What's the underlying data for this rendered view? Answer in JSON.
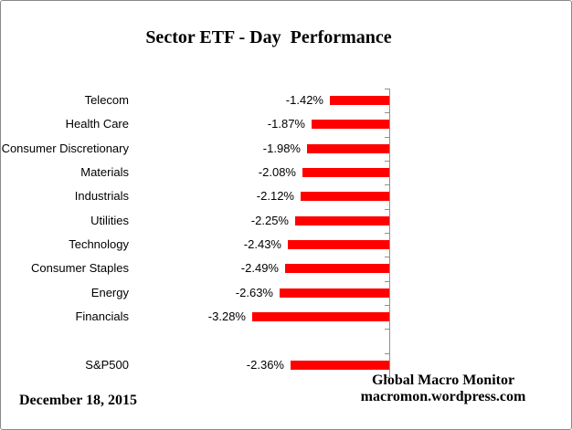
{
  "chart_data": {
    "type": "bar",
    "orientation": "horizontal",
    "title": "Sector ETF - Day  Performance",
    "categories": [
      "Telecom",
      "Health Care",
      "Consumer Discretionary",
      "Materials",
      "Industrials",
      "Utilities",
      "Technology",
      "Consumer Staples",
      "Energy",
      "Financials",
      "",
      "S&P500"
    ],
    "values": [
      -1.42,
      -1.87,
      -1.98,
      -2.08,
      -2.12,
      -2.25,
      -2.43,
      -2.49,
      -2.63,
      -3.28,
      null,
      -2.36
    ],
    "value_labels": [
      "-1.42%",
      "-1.87%",
      "-1.98%",
      "-2.08%",
      "-2.12%",
      "-2.25%",
      "-2.43%",
      "-2.49%",
      "-2.63%",
      "-3.28%",
      null,
      "-2.36%"
    ],
    "xlabel": "",
    "ylabel": "",
    "value_axis_labels_visible": false,
    "gridlines": false,
    "legend": "none",
    "xlim_estimate": [
      -3.5,
      0
    ],
    "bar_color": "#ff0000",
    "axis_color": "#8e8e8e",
    "label_color": "#000000"
  },
  "footer": {
    "date": "December 18, 2015",
    "source_name": "Global Macro Monitor",
    "source_url": "macromon.wordpress.com"
  }
}
